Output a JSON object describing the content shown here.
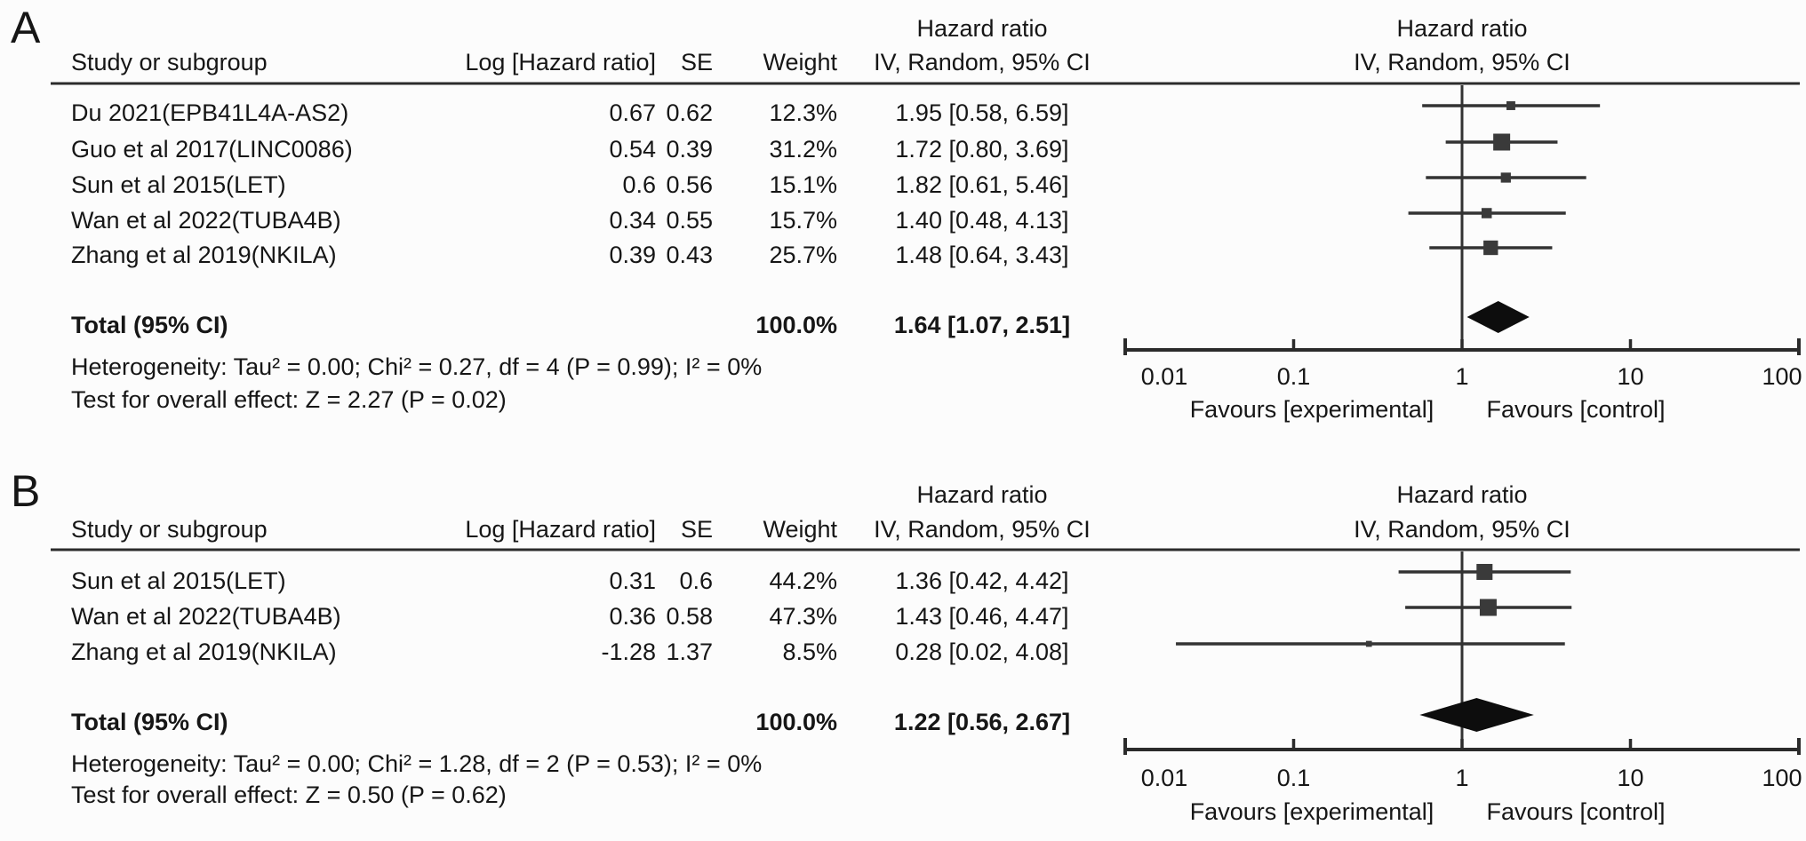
{
  "colors": {
    "text": "#161616",
    "rule": "#2b2b2b",
    "ci_line": "#333333",
    "marker": "#3a3a3a",
    "diamond": "#0d0d0d",
    "background": "#fcfcfc"
  },
  "chart_data": [
    {
      "type": "forest",
      "panel_label": "A",
      "columns": {
        "study": "Study or subgroup",
        "log_hr": "Log [Hazard ratio]",
        "se": "SE",
        "weight": "Weight",
        "effect_line1": "Hazard ratio",
        "effect_line2": "IV, Random, 95% CI",
        "plot_line1": "Hazard ratio",
        "plot_line2": "IV, Random, 95% CI"
      },
      "studies": [
        {
          "study": "Du 2021(EPB41L4A-AS2)",
          "log_hr": "0.67",
          "se": "0.62",
          "weight": "12.3%",
          "weight_pct": 12.3,
          "ci_label": "1.95 [0.58, 6.59]",
          "hr": 1.95,
          "ci_low": 0.58,
          "ci_high": 6.59
        },
        {
          "study": "Guo et al 2017(LINC0086)",
          "log_hr": "0.54",
          "se": "0.39",
          "weight": "31.2%",
          "weight_pct": 31.2,
          "ci_label": "1.72 [0.80, 3.69]",
          "hr": 1.72,
          "ci_low": 0.8,
          "ci_high": 3.69
        },
        {
          "study": "Sun et al 2015(LET)",
          "log_hr": "0.6",
          "se": "0.56",
          "weight": "15.1%",
          "weight_pct": 15.1,
          "ci_label": "1.82 [0.61, 5.46]",
          "hr": 1.82,
          "ci_low": 0.61,
          "ci_high": 5.46
        },
        {
          "study": "Wan et al 2022(TUBA4B)",
          "log_hr": "0.34",
          "se": "0.55",
          "weight": "15.7%",
          "weight_pct": 15.7,
          "ci_label": "1.40 [0.48, 4.13]",
          "hr": 1.4,
          "ci_low": 0.48,
          "ci_high": 4.13
        },
        {
          "study": "Zhang et al 2019(NKILA)",
          "log_hr": "0.39",
          "se": "0.43",
          "weight": "25.7%",
          "weight_pct": 25.7,
          "ci_label": "1.48 [0.64, 3.43]",
          "hr": 1.48,
          "ci_low": 0.64,
          "ci_high": 3.43
        }
      ],
      "total": {
        "label": "Total (95% CI)",
        "weight": "100.0%",
        "ci_label": "1.64 [1.07, 2.51]",
        "hr": 1.64,
        "ci_low": 1.07,
        "ci_high": 2.51
      },
      "heterogeneity": "Heterogeneity: Tau² = 0.00; Chi² = 0.27, df = 4 (P = 0.99); I² = 0%",
      "overall_effect": "Test for overall effect: Z = 2.27 (P = 0.02)",
      "axis": {
        "scale": "log",
        "min": 0.01,
        "max": 100,
        "ticks": [
          0.01,
          0.1,
          1,
          10,
          100
        ],
        "tick_labels": [
          "0.01",
          "0.1",
          "1",
          "10",
          "100"
        ],
        "left_label": "Favours [experimental]",
        "right_label": "Favours [control]"
      }
    },
    {
      "type": "forest",
      "panel_label": "B",
      "columns": {
        "study": "Study or subgroup",
        "log_hr": "Log [Hazard ratio]",
        "se": "SE",
        "weight": "Weight",
        "effect_line1": "Hazard ratio",
        "effect_line2": "IV, Random, 95% CI",
        "plot_line1": "Hazard ratio",
        "plot_line2": "IV, Random, 95% CI"
      },
      "studies": [
        {
          "study": "Sun et al 2015(LET)",
          "log_hr": "0.31",
          "se": "0.6",
          "weight": "44.2%",
          "weight_pct": 44.2,
          "ci_label": "1.36 [0.42, 4.42]",
          "hr": 1.36,
          "ci_low": 0.42,
          "ci_high": 4.42
        },
        {
          "study": "Wan et al 2022(TUBA4B)",
          "log_hr": "0.36",
          "se": "0.58",
          "weight": "47.3%",
          "weight_pct": 47.3,
          "ci_label": "1.43 [0.46, 4.47]",
          "hr": 1.43,
          "ci_low": 0.46,
          "ci_high": 4.47
        },
        {
          "study": "Zhang et al 2019(NKILA)",
          "log_hr": "-1.28",
          "se": "1.37",
          "weight": "8.5%",
          "weight_pct": 8.5,
          "ci_label": "0.28 [0.02, 4.08]",
          "hr": 0.28,
          "ci_low": 0.02,
          "ci_high": 4.08
        }
      ],
      "total": {
        "label": "Total (95% CI)",
        "weight": "100.0%",
        "ci_label": "1.22 [0.56, 2.67]",
        "hr": 1.22,
        "ci_low": 0.56,
        "ci_high": 2.67
      },
      "heterogeneity": "Heterogeneity: Tau² = 0.00; Chi² = 1.28, df = 2 (P = 0.53); I² = 0%",
      "overall_effect": "Test for overall effect: Z = 0.50 (P = 0.62)",
      "axis": {
        "scale": "log",
        "min": 0.01,
        "max": 100,
        "ticks": [
          0.01,
          0.1,
          1,
          10,
          100
        ],
        "tick_labels": [
          "0.01",
          "0.1",
          "1",
          "10",
          "100"
        ],
        "left_label": "Favours [experimental]",
        "right_label": "Favours [control]"
      }
    }
  ]
}
